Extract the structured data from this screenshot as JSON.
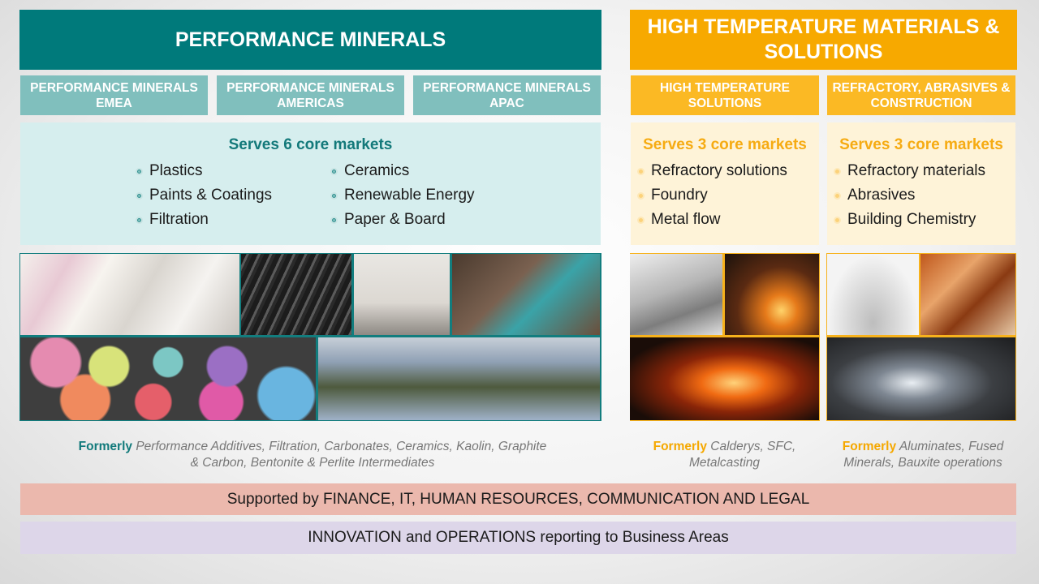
{
  "performance_minerals": {
    "title": "PERFORMANCE MINERALS",
    "divisions": [
      "PERFORMANCE MINERALS EMEA",
      "PERFORMANCE MINERALS AMERICAS",
      "PERFORMANCE MINERALS APAC"
    ],
    "markets_heading": "Serves 6 core markets",
    "markets_left": [
      "Plastics",
      "Paints & Coatings",
      "Filtration"
    ],
    "markets_right": [
      "Ceramics",
      "Renewable Energy",
      "Paper & Board"
    ],
    "formerly_label": "Formerly",
    "formerly_text": "Performance Additives, Filtration, Carbonates, Ceramics, Kaolin, Graphite & Carbon, Bentonite & Perlite Intermediates",
    "color": "#007a7b"
  },
  "high_temperature": {
    "title": "HIGH TEMPERATURE MATERIALS & SOLUTIONS",
    "divisions": [
      {
        "title": "HIGH TEMPERATURE SOLUTIONS",
        "markets_heading": "Serves 3 core markets",
        "markets": [
          "Refractory solutions",
          "Foundry",
          "Metal flow"
        ],
        "formerly_label": "Formerly",
        "formerly_text": "Calderys, SFC, Metalcasting"
      },
      {
        "title": "REFRACTORY, ABRASIVES & CONSTRUCTION",
        "markets_heading": "Serves 3 core markets",
        "markets": [
          "Refractory materials",
          "Abrasives",
          "Building Chemistry"
        ],
        "formerly_label": "Formerly",
        "formerly_text": "Aluminates, Fused Minerals, Bauxite operations"
      }
    ],
    "color": "#f7a900"
  },
  "support_bar": "Supported by FINANCE, IT, HUMAN RESOURCES, COMMUNICATION AND LEGAL",
  "innovation_bar": "INNOVATION and OPERATIONS reporting to Business Areas"
}
